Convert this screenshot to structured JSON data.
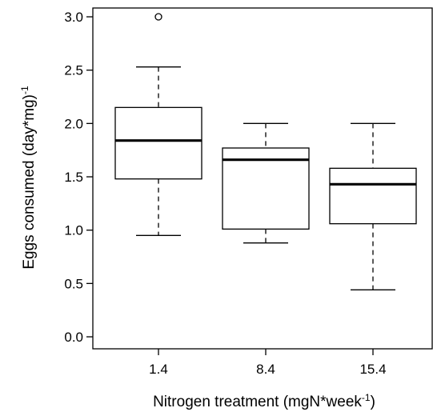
{
  "chart_data": {
    "type": "boxplot",
    "title": "",
    "xlabel": "Nitrogen treatment (mgN*week",
    "xlabel_sup": "-1",
    "xlabel_end": ")",
    "ylabel": "Eggs consumed (day*mg)",
    "ylabel_sup": "-1",
    "ylim": [
      0.0,
      3.0
    ],
    "yticks": [
      "0.0",
      "0.5",
      "1.0",
      "1.5",
      "2.0",
      "2.5",
      "3.0"
    ],
    "categories": [
      "1.4",
      "8.4",
      "15.4"
    ],
    "boxes": [
      {
        "category": "1.4",
        "whisker_low": 0.95,
        "q1": 1.48,
        "median": 1.84,
        "q3": 2.15,
        "whisker_high": 2.53,
        "outliers": [
          3.0
        ]
      },
      {
        "category": "8.4",
        "whisker_low": 0.88,
        "q1": 1.01,
        "median": 1.66,
        "q3": 1.77,
        "whisker_high": 2.0,
        "outliers": []
      },
      {
        "category": "15.4",
        "whisker_low": 0.44,
        "q1": 1.06,
        "median": 1.43,
        "q3": 1.58,
        "whisker_high": 2.0,
        "outliers": []
      }
    ],
    "grid": false,
    "legend": "none"
  }
}
